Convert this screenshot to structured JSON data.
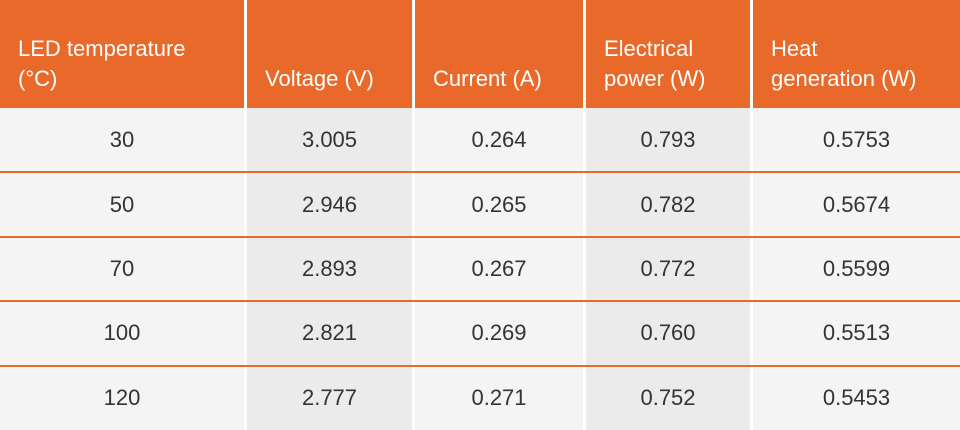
{
  "table": {
    "header": [
      [
        "LED temperature",
        "(°C)"
      ],
      [
        "Voltage (V)"
      ],
      [
        "Current (A)"
      ],
      [
        "Electrical",
        "power (W)"
      ],
      [
        "Heat",
        "generation (W)"
      ]
    ],
    "rows": [
      [
        "30",
        "3.005",
        "0.264",
        "0.793",
        "0.5753"
      ],
      [
        "50",
        "2.946",
        "0.265",
        "0.782",
        "0.5674"
      ],
      [
        "70",
        "2.893",
        "0.267",
        "0.772",
        "0.5599"
      ],
      [
        "100",
        "2.821",
        "0.269",
        "0.760",
        "0.5513"
      ],
      [
        "120",
        "2.777",
        "0.271",
        "0.752",
        "0.5453"
      ]
    ]
  }
}
